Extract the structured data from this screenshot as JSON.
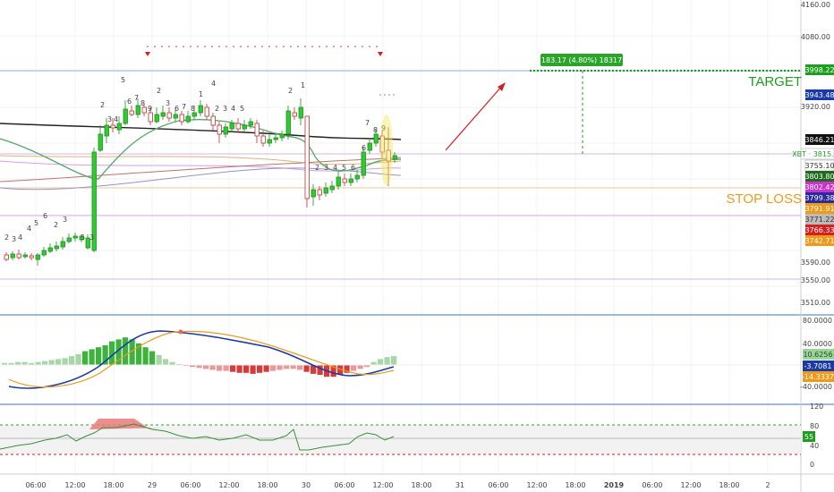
{
  "price_axis": {
    "ticks": [
      "4160.00",
      "4080.00",
      "3920.00",
      "3590.00",
      "3550.00",
      "3510.00"
    ]
  },
  "price_tags": [
    {
      "text": "3998.22",
      "bg": "#1e9e1e",
      "fg": "#ffffff"
    },
    {
      "text": "3943.48",
      "bg": "#1a3aa8",
      "fg": "#ffffff"
    },
    {
      "text": "3846.21",
      "bg": "#111111",
      "fg": "#ffffff"
    },
    {
      "text": "XBT · 3815.48",
      "bg": "#ffffff",
      "fg": "#2aa02a"
    },
    {
      "text": "3755.10",
      "bg": "#ffffff",
      "fg": "#333333"
    },
    {
      "text": "3803.80",
      "bg": "#1e6b1e",
      "fg": "#ffffff"
    },
    {
      "text": "3802.42",
      "bg": "#cc33cc",
      "fg": "#ffffff"
    },
    {
      "text": "3799.38",
      "bg": "#2a2aa0",
      "fg": "#ffffff"
    },
    {
      "text": "3791.91",
      "bg": "#ef9a1a",
      "fg": "#ffffff"
    },
    {
      "text": "3771.22",
      "bg": "#bbbbbb",
      "fg": "#333333"
    },
    {
      "text": "3766.33",
      "bg": "#d42020",
      "fg": "#ffffff"
    },
    {
      "text": "3742.71",
      "bg": "#ef9a1a",
      "fg": "#ffffff"
    }
  ],
  "annotations": {
    "target_label": "TARGET",
    "stop_loss_label": "STOP LOSS",
    "measure_label": "183.17 (4.80%) 18317"
  },
  "macd_axis": {
    "ticks": [
      "80.0000",
      "40.0000",
      "-40.0000"
    ],
    "tags": [
      {
        "text": "10.6256",
        "bg": "#9bd39b",
        "fg": "#1f4f1f"
      },
      {
        "text": "-3.7081",
        "bg": "#1a3aa8",
        "fg": "#ffffff"
      },
      {
        "text": "-14.3337",
        "bg": "#ef9a1a",
        "fg": "#ffffff"
      }
    ]
  },
  "rsi_axis": {
    "ticks": [
      "120",
      "80",
      "40",
      "0"
    ],
    "tag": {
      "text": "55",
      "bg": "#1e9e1e",
      "fg": "#ffffff"
    }
  },
  "time_axis": {
    "labels": [
      "06:00",
      "12:00",
      "18:00",
      "29",
      "06:00",
      "12:00",
      "18:00",
      "30",
      "06:00",
      "12:00",
      "18:00",
      "31",
      "06:00",
      "12:00",
      "18:00",
      "2019",
      "06:00",
      "12:00",
      "18:00",
      "2"
    ]
  },
  "colors": {
    "bull": "#2ecc2e",
    "bear": "#e23b3b",
    "ema_black": "#222222",
    "ema_green": "#5aaa6e",
    "target": "#1e9e1e",
    "stoploss": "#ef9a1a",
    "arrow": "#d42020",
    "macd": "#1a3aa8",
    "signal": "#ef9a1a"
  }
}
